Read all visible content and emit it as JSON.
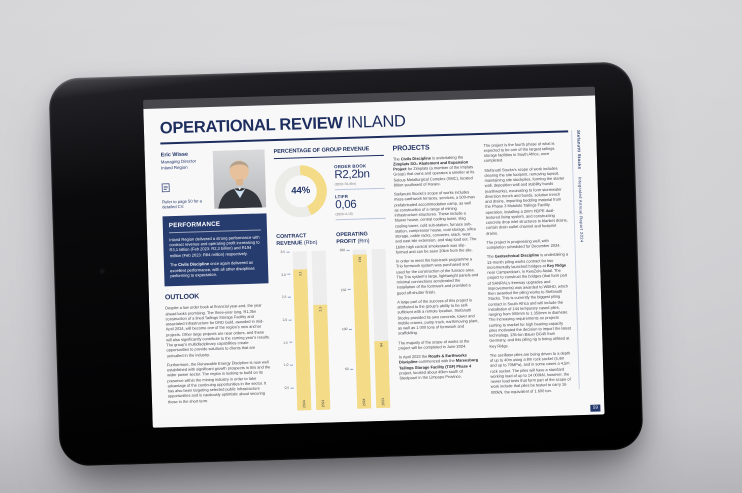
{
  "colors": {
    "navy": "#1D2E5E",
    "performance_bg": "#263B6E",
    "accent_yellow": "#F3DB88",
    "donut_track": "#EBEBE7",
    "bar_track": "#EDEDEE"
  },
  "header": {
    "title_bold": "OPERATIONAL REVIEW",
    "title_region": "INLAND"
  },
  "profile": {
    "name": "Eric Wisse",
    "role": "Managing Director",
    "region": "Inland Region",
    "cv_note": "Refer to page 50 for a detailed CV."
  },
  "performance": {
    "heading": "PERFORMANCE",
    "paragraphs": [
      [
        [
          "",
          "Inland Region delivered a strong performance with contract revenue and operating profit increasing to R3,1 billion (Feb 2023: R2,3 billion) and R194 million (Feb 2023: R84 million) respectively."
        ]
      ],
      [
        [
          "",
          "The "
        ],
        [
          "b",
          "Civils Discipline"
        ],
        [
          "",
          " once again delivered an excellent performance, with all other disciplines performing to expectation."
        ]
      ]
    ]
  },
  "outlook": {
    "heading": "OUTLOOK",
    "paragraphs": [
      [
        [
          "",
          "Despite a low order book at financial year-end, the year ahead looks promising. The three-year long, R1,3bn construction of a lined Tailings Storage Facility and associated infrastructure for DRD Gold, awarded in mid-April 2024, will become one of the region’s new anchor projects. Other large projects are near orders, and these will also significantly contribute to the coming year’s results. The group’s multidisciplinary capabilities create opportunities to provide solutions to clients that are unrivalled in the industry."
        ]
      ],
      [
        [
          "",
          "Furthermore, the Renewable Energy Discipline is now well established with significant growth prospects in this and the wider power sector. The region is looking to build on its presence within the mining industry in order to take advantage of the continuing opportunities in the sector. It has also been targeting selected public infrastructure opportunities and is cautiously optimistic about securing these in the short term."
        ]
      ]
    ]
  },
  "stats": {
    "group_revenue_heading": "PERCENTAGE OF GROUP REVENUE",
    "order_book_label": "ORDER BOOK",
    "order_book_value": "R2,2bn",
    "order_book_prior": "(2023: R1,9bn)",
    "ltifr_label": "LTIFR",
    "ltifr_value": "0,06",
    "ltifr_prior": "(2023: 0,13)"
  },
  "chart_data": [
    {
      "type": "pie",
      "title": "PERCENTAGE OF GROUP REVENUE",
      "label": "44%",
      "value": 44
    },
    {
      "type": "bar",
      "title_bold": "CONTRACT REVENUE",
      "title_unit": "(Rbn)",
      "ylim": [
        0,
        3.5
      ],
      "max": 3.5,
      "ticks": [
        {
          "label": "3,5",
          "v": 3.5
        },
        {
          "label": "3,0",
          "v": 3.0
        },
        {
          "label": "2,5",
          "v": 2.5
        },
        {
          "label": "2,0",
          "v": 2.0
        },
        {
          "label": "1,5",
          "v": 1.5
        },
        {
          "label": "1,0",
          "v": 1.0
        },
        {
          "label": "0,5",
          "v": 0.5
        }
      ],
      "bars": [
        {
          "year": "2024",
          "value": 3.1,
          "label": "3,1"
        },
        {
          "year": "2023",
          "value": 2.3,
          "label": "2,3"
        }
      ]
    },
    {
      "type": "bar",
      "title_bold": "OPERATING PROFIT",
      "title_unit": "(Rm)",
      "ylim": [
        0,
        200
      ],
      "max": 200,
      "ticks": [
        {
          "label": "200",
          "v": 200
        },
        {
          "label": "150",
          "v": 150
        },
        {
          "label": "100",
          "v": 100
        },
        {
          "label": "50",
          "v": 50
        }
      ],
      "bars": [
        {
          "year": "2024",
          "value": 194,
          "label": "194"
        },
        {
          "year": "2023",
          "value": 84,
          "label": "84"
        }
      ]
    }
  ],
  "projects": {
    "heading": "PROJECTS",
    "col1": [
      [
        [
          "",
          "The "
        ],
        [
          "b",
          "Civils Discipline"
        ],
        [
          "",
          " is undertaking the "
        ],
        [
          "b",
          "Zimplats SO₂ Abatement and Expansion Project"
        ],
        [
          "",
          " for Zimplats (a member of the Implats Group) that owns and operates a smelter at its Selous Metallurgical Complex (SMC), located 80km southwest of Harare."
        ]
      ],
      [
        [
          "",
          "Stefanutti Stocks’s scope of works includes mass earthwork terraces, services, a 500-man prefabricated accommodation camp, as well as construction of a range of mining infrastructure structures. These include a blower house, central cooling tower, slag cooling tower, cold sub-station, furnace sub-station, compressor house, coal storage, silica storage, cable racks, converter, stack, west and east isle extension, and slag load out. The 160m high conical smokestack was slip-formed and can be seen 20km from the site."
        ]
      ],
      [
        [
          "",
          "In order to meet the fast-track programme a Trio formwork system was purchased and used for the construction of the furnace area. The Trio system’s large, lightweight panels and minimal connections accelerated the installation of the formwork and provided a good off-shutter finish."
        ]
      ],
      [
        [
          "",
          "A large part of the success of this project is attributed to the group’s ability to be self-sufficient with a remote location. Stefanutti Stocks provided its own concrete, tower and mobile cranes, pump truck, earthmoving plant, as well as 1 000 tons of formwork and scaffolding."
        ]
      ],
      [
        [
          "",
          "The majority of the scope of works at the project will be completed in June 2024."
        ]
      ],
      [
        [
          "",
          "In April 2023 the "
        ],
        [
          "b",
          "Roads & Earthworks Discipline"
        ],
        [
          "",
          " commenced with the "
        ],
        [
          "b",
          "Mareesburg Tailings Storage Facility (TSF) Phase 4"
        ],
        [
          "",
          " project, located about 40km south of Steelpoort in the Limpopo Province."
        ]
      ]
    ],
    "col2": [
      [
        [
          "",
          "The project is the fourth phase of what is expected to be one of the largest tailings storage facilities in South Africa, once completed."
        ]
      ],
      [
        [
          "",
          "Stefanutti Stocks’s scope of work includes clearing the site footprint, removing topsoil, maintaining site stockpiles, forming the starter wall, deposition wall and stability bunds (earthworks), excavating to form stormwater diversion trench and bunds, solution trench and drains, importing bedding material from the Phase 3 Motololo Tailings Facility operation, installing a 2mm HDPE dual-textured lining system, and constructing concrete drop inlet structures to blanket drains, curtain drain outlet channel and footprint drains."
        ]
      ],
      [
        [
          "",
          "The project is progressing well, with completion scheduled for December 2024."
        ]
      ],
      [
        [
          "",
          "The "
        ],
        [
          "b",
          "Geotechnical Discipline"
        ],
        [
          "",
          " is undertaking a 12-month piling works contract for two incrementally launched bridges at "
        ],
        [
          "b",
          "Key Ridge"
        ],
        [
          "",
          " near Camperdown, in KwaZulu-Natal. The project to construct the bridges (that form part of SANRAL’s freeway upgrades and improvements) was awarded to WBHO, which then awarded the piling works to Stefanutti Stocks. This is currently the biggest piling contract in South Africa and will include the installation of 144 temporary cased piles, ranging from 900mm to 1 350mm in diameter. The increasing requirements on projects coming to market for high bearing capacity piles motivated the decision to import the latest technology, 135-ton Bauer BG45 from Germany, and this piling rig is being utilised at Key Ridge."
        ]
      ],
      [
        [
          "",
          "The oscillator piles are being driven to a depth of up to 40m using a 8m rock socket (5,4m and up to 70MPa), and in some cases a 4,5m rock socket. The piles will have a standard working load of up to 14 000kN, however, the newer load tests that form part of the scope of work include that piles be tested to carry 16 000kN, the equivalent of 1 600 ton."
        ]
      ]
    ]
  },
  "sidebar": {
    "brand": "Stefanutti Stocks",
    "report": "Integrated Annual Report 2024",
    "page_number": "59"
  }
}
